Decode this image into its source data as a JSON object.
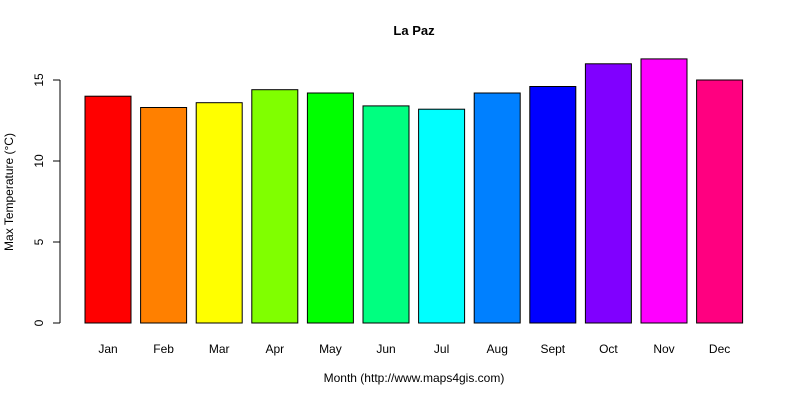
{
  "chart_data": {
    "type": "bar",
    "title": "La Paz",
    "xlabel": "Month (http://www.maps4gis.com)",
    "ylabel": "Max Temperature (°C)",
    "ylim": [
      0,
      17
    ],
    "yticks": [
      0,
      5,
      10,
      15
    ],
    "grid": false,
    "categories": [
      "Jan",
      "Feb",
      "Mar",
      "Apr",
      "May",
      "Jun",
      "Jul",
      "Aug",
      "Sept",
      "Oct",
      "Nov",
      "Dec"
    ],
    "values": [
      14.0,
      13.3,
      13.6,
      14.4,
      14.2,
      13.4,
      13.2,
      14.2,
      14.6,
      16.0,
      16.3,
      15.0
    ],
    "colors": [
      "#FF0000",
      "#FF8000",
      "#FFFF00",
      "#80FF00",
      "#00FF00",
      "#00FF80",
      "#00FFFF",
      "#0080FF",
      "#0000FF",
      "#8000FF",
      "#FF00FF",
      "#FF0080"
    ]
  }
}
